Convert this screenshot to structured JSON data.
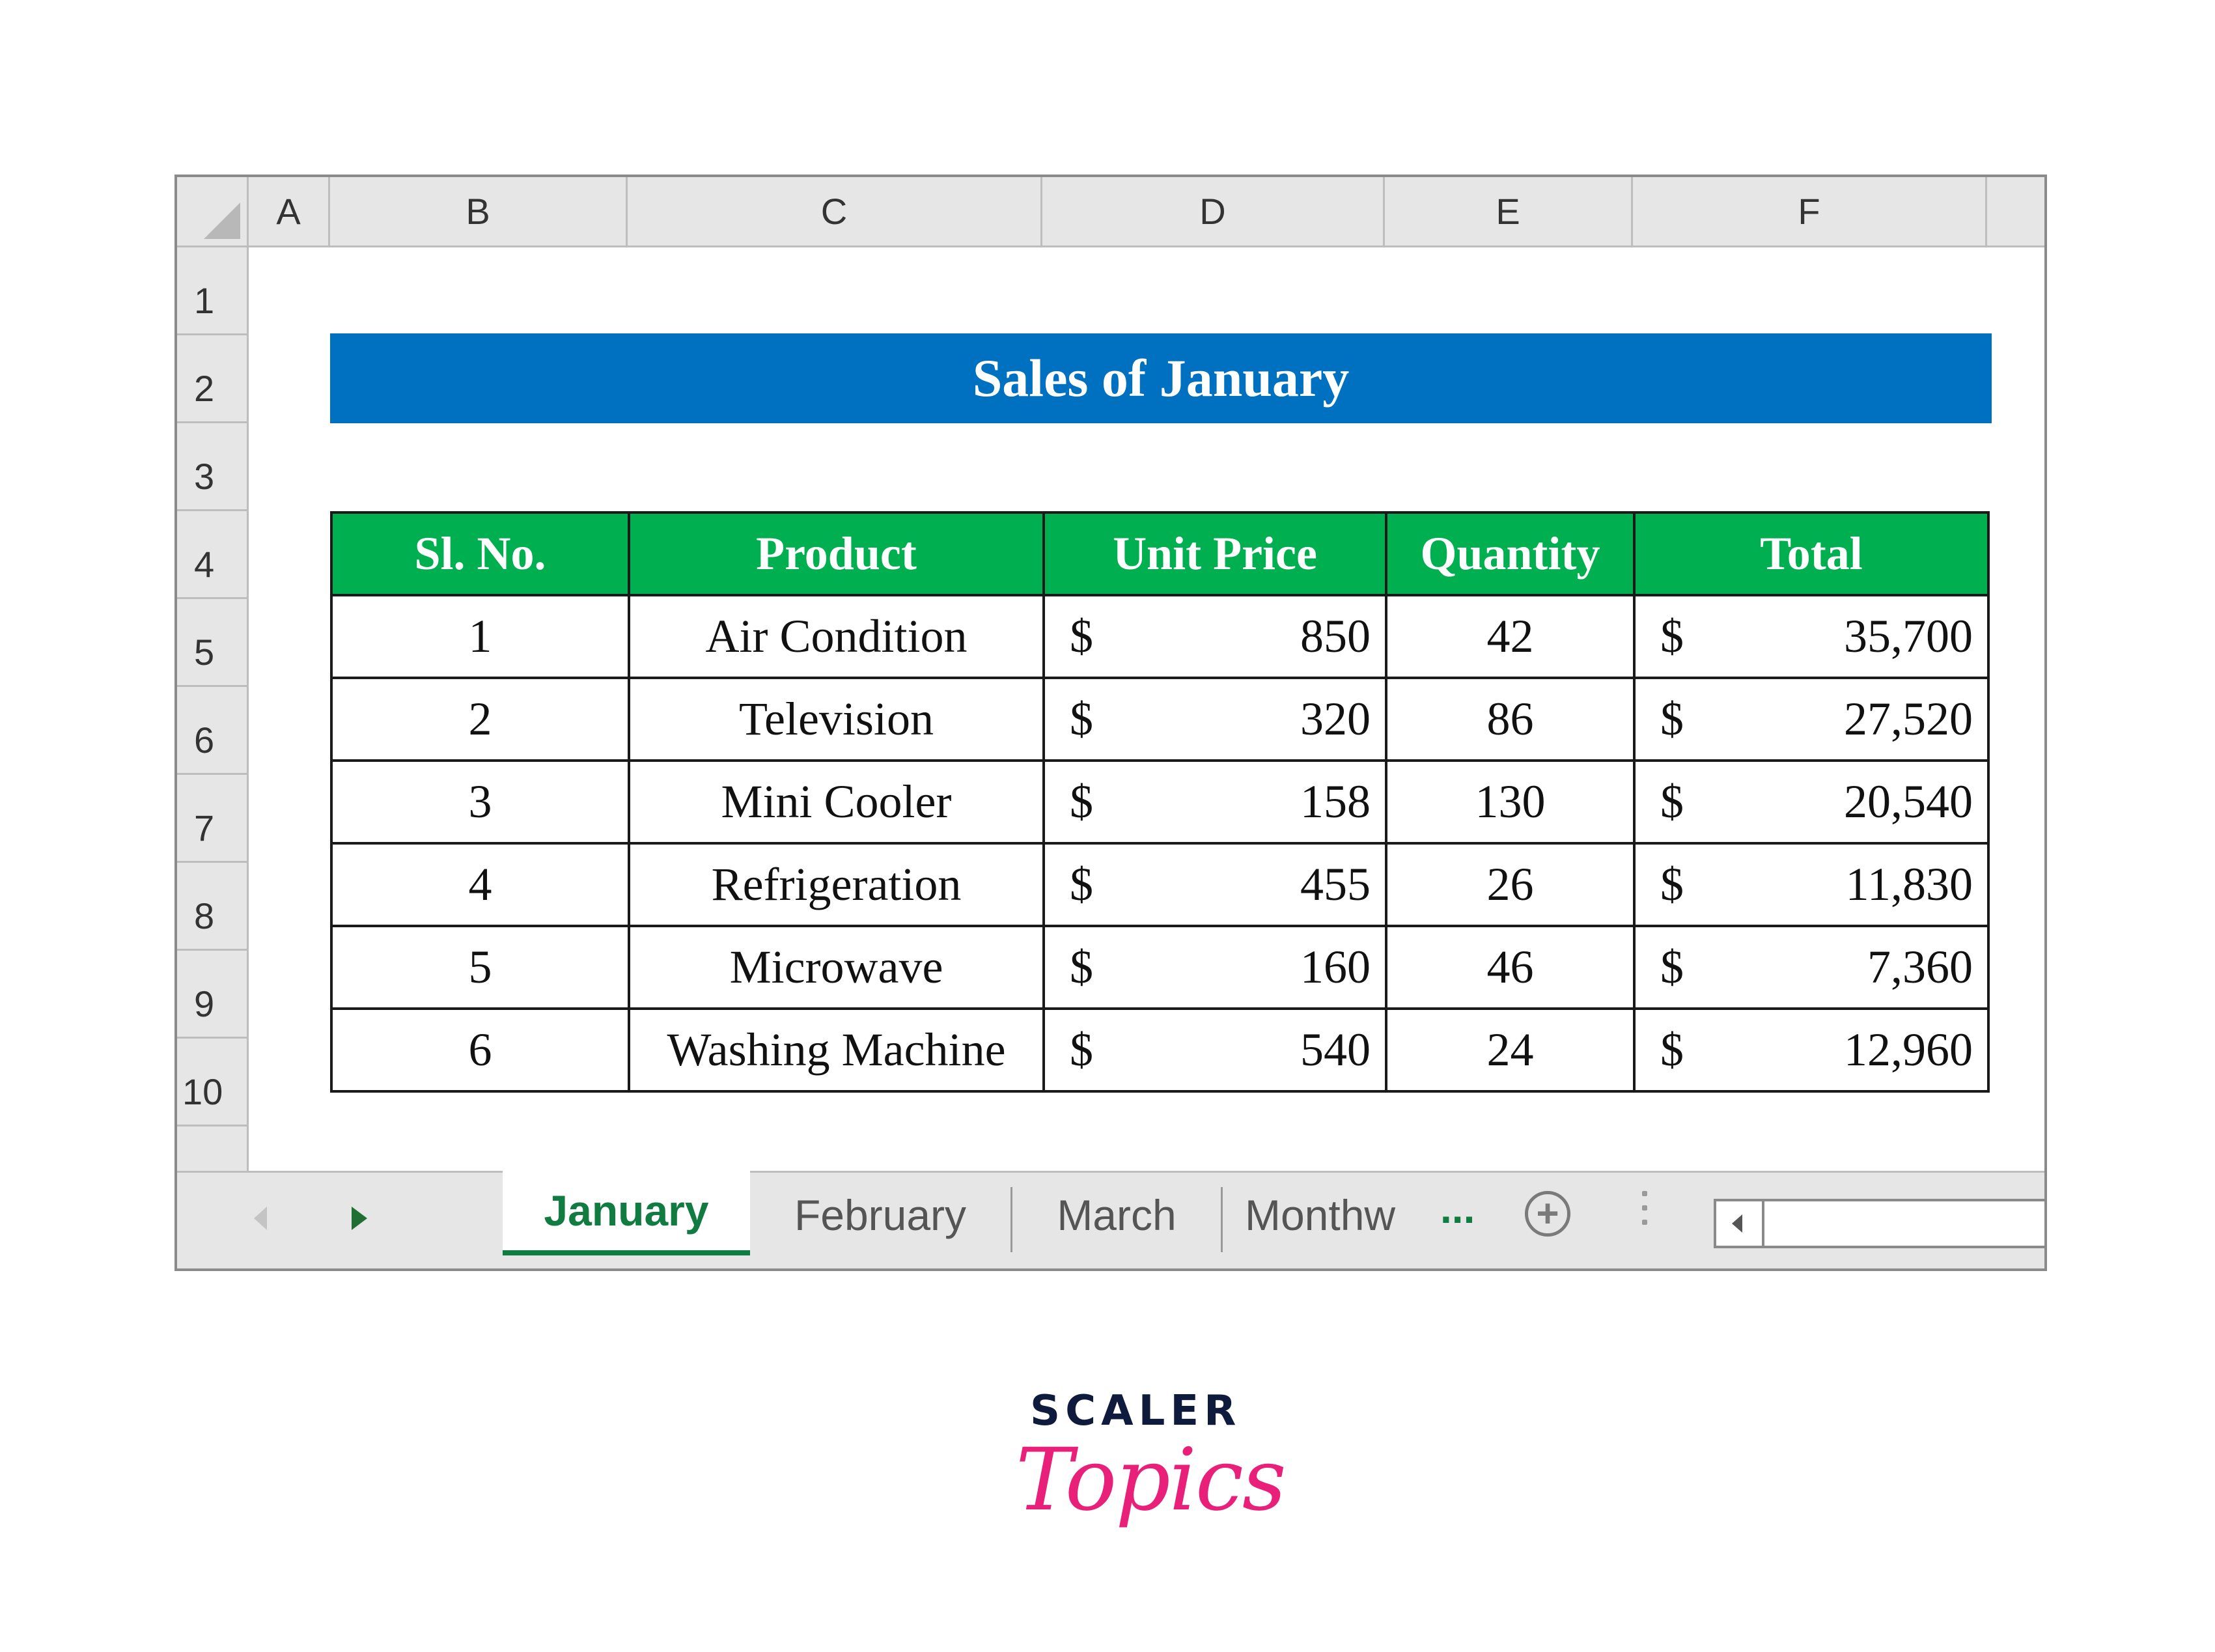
{
  "sheet": {
    "columns": [
      "A",
      "B",
      "C",
      "D",
      "E",
      "F"
    ],
    "rows": [
      "1",
      "2",
      "3",
      "4",
      "5",
      "6",
      "7",
      "8",
      "9",
      "10"
    ]
  },
  "title": "Sales of January",
  "table": {
    "headers": [
      "Sl. No.",
      "Product",
      "Unit Price",
      "Quantity",
      "Total"
    ],
    "currency": "$",
    "rows": [
      {
        "sl": "1",
        "product": "Air Condition",
        "price": "850",
        "qty": "42",
        "total": "35,700"
      },
      {
        "sl": "2",
        "product": "Television",
        "price": "320",
        "qty": "86",
        "total": "27,520"
      },
      {
        "sl": "3",
        "product": "Mini Cooler",
        "price": "158",
        "qty": "130",
        "total": "20,540"
      },
      {
        "sl": "4",
        "product": "Refrigeration",
        "price": "455",
        "qty": "26",
        "total": "11,830"
      },
      {
        "sl": "5",
        "product": "Microwave",
        "price": "160",
        "qty": "46",
        "total": "7,360"
      },
      {
        "sl": "6",
        "product": "Washing Machine",
        "price": "540",
        "qty": "24",
        "total": "12,960"
      }
    ]
  },
  "tabs": [
    "January",
    "February",
    "March",
    "Monthw"
  ],
  "active_tab": "January",
  "tab_more": "...",
  "add_sheet_symbol": "+",
  "icons": [
    "scroll-left-arrow",
    "scroll-right-arrow",
    "add-sheet-icon",
    "more-options-icon",
    "scrollbar-left-arrow"
  ],
  "colors": {
    "title_bg": "#0070c0",
    "header_bg": "#00b050",
    "active_tab": "#107c41",
    "logo_pink": "#e8207a"
  },
  "logo": {
    "line1": "SCALER",
    "line2": "Topics"
  }
}
